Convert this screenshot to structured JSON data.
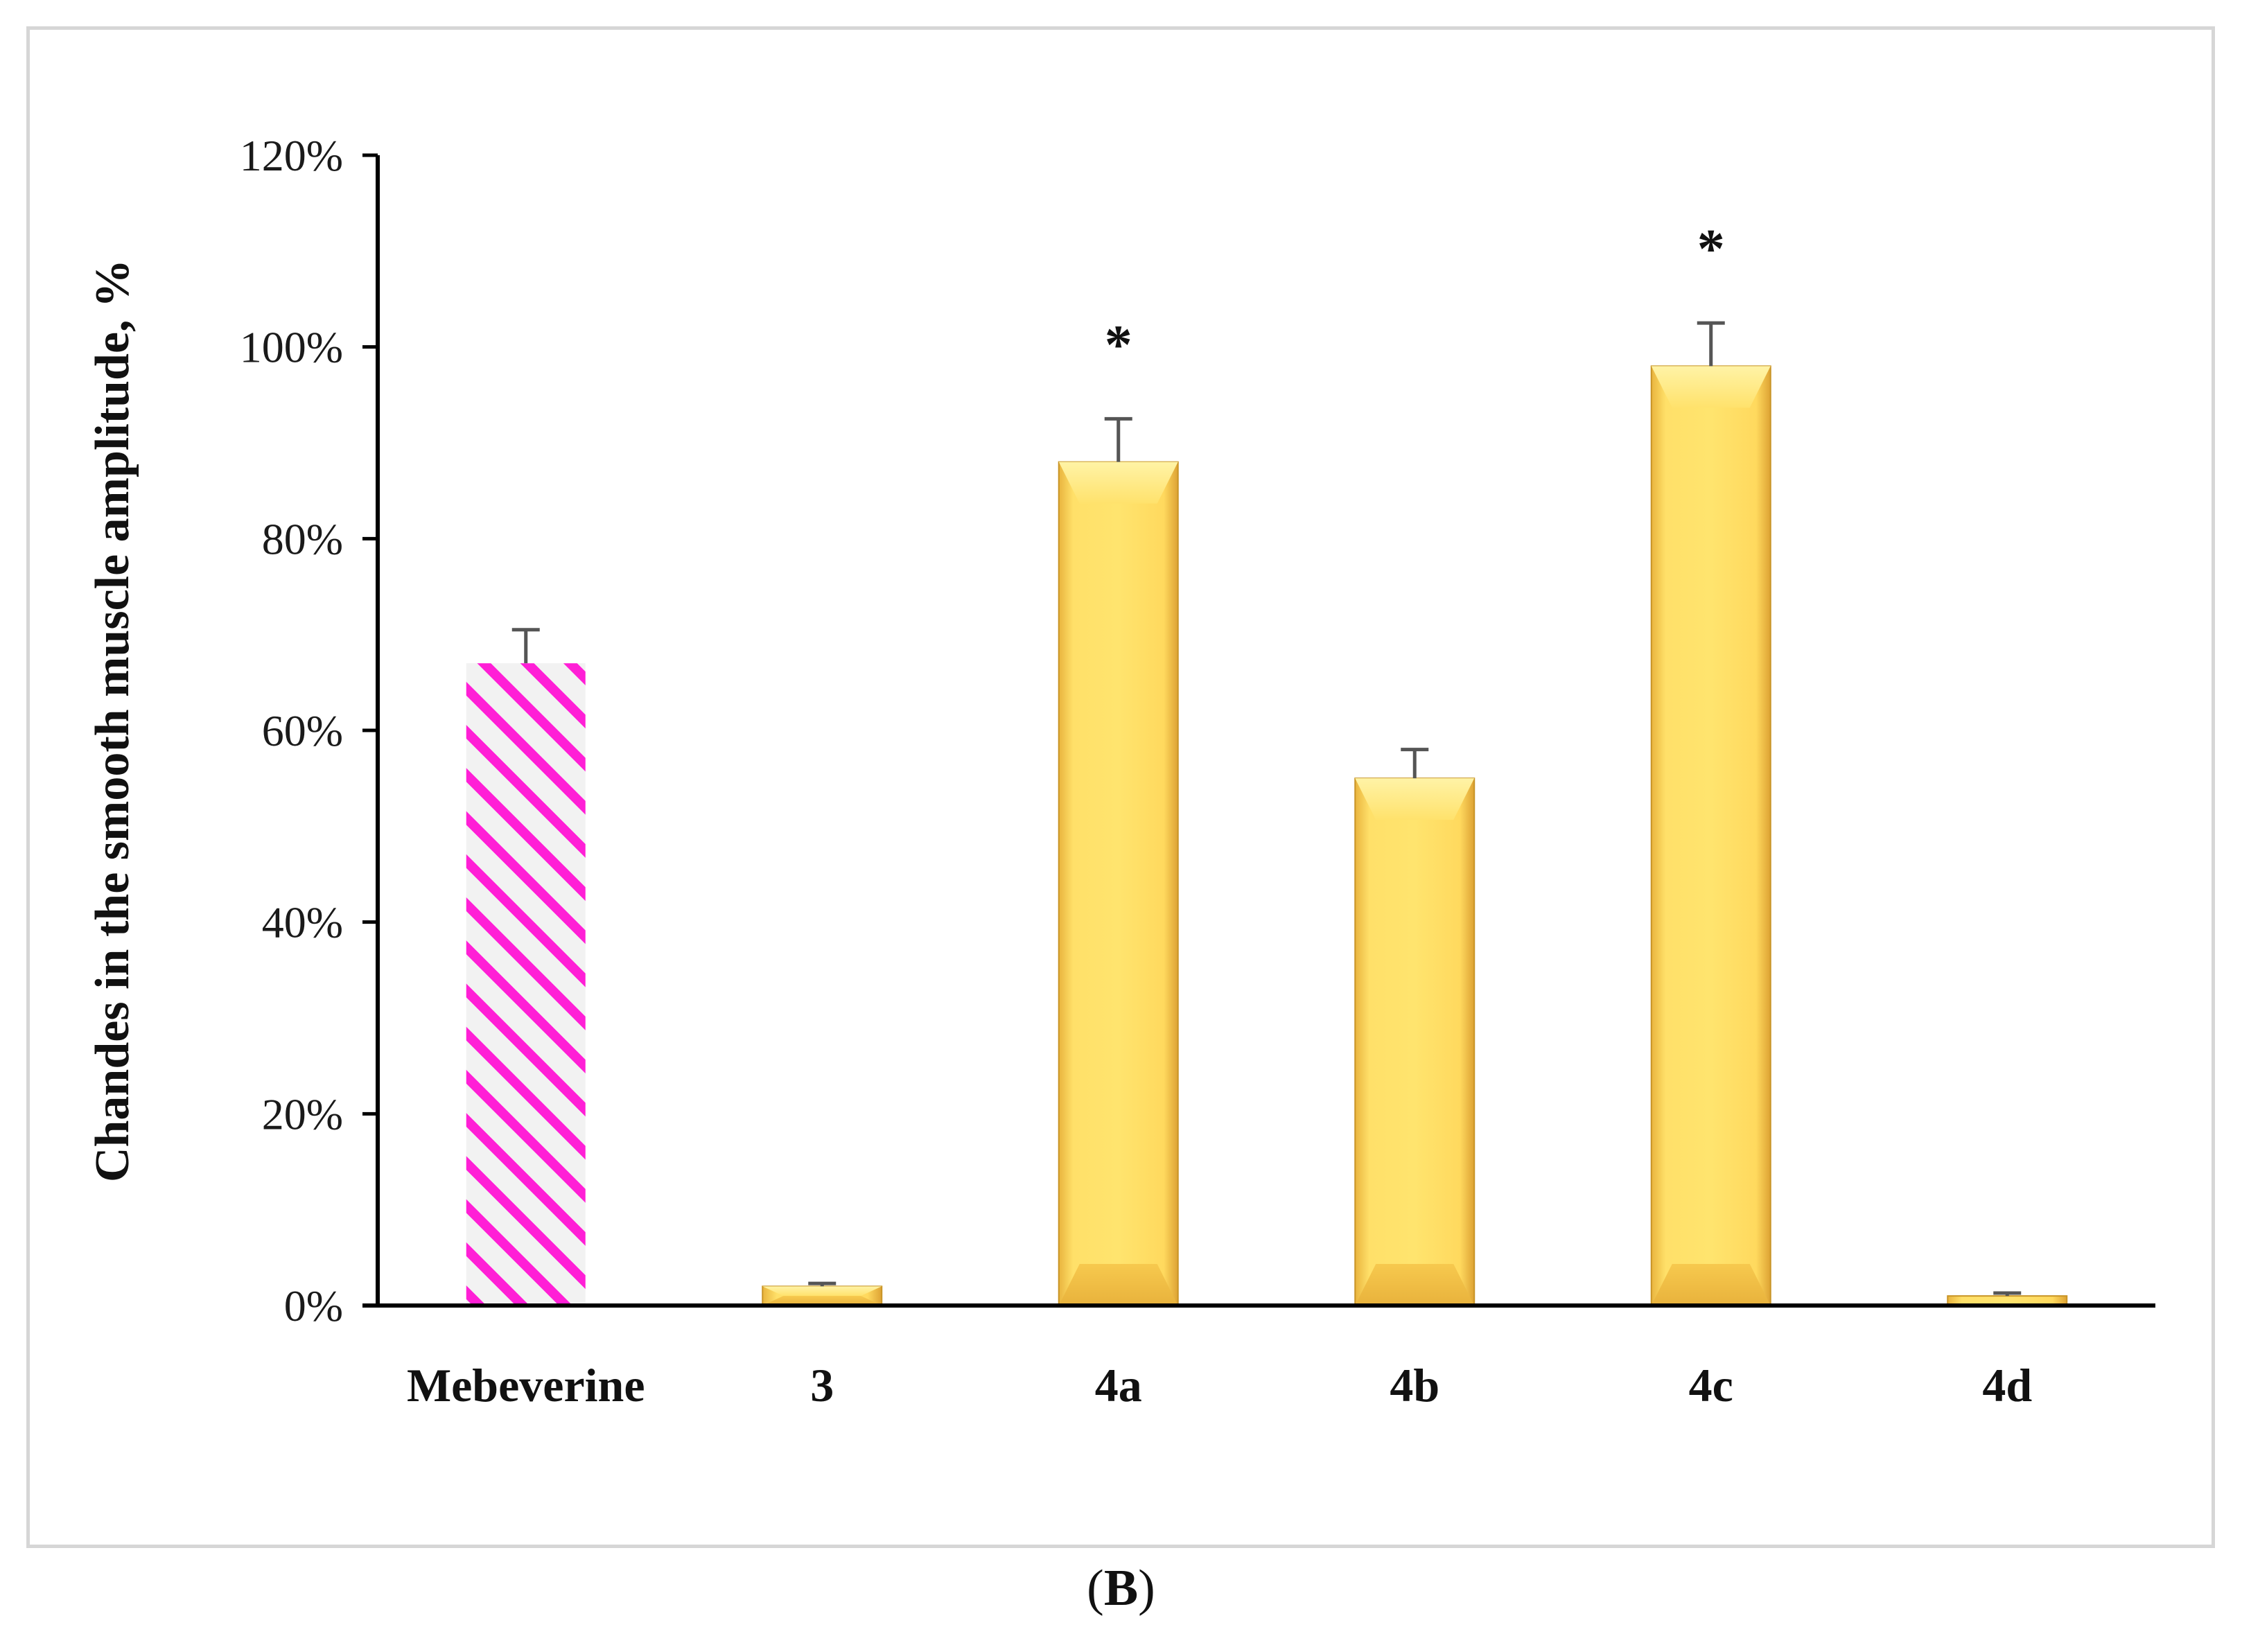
{
  "chart_data": {
    "type": "bar",
    "title": "",
    "xlabel": "",
    "ylabel": "Chandes in the smooth muscle amplitude, %",
    "ylim": [
      0,
      120
    ],
    "y_ticks": [
      0,
      20,
      40,
      60,
      80,
      100,
      120
    ],
    "y_tick_labels": [
      "0%",
      "20%",
      "40%",
      "60%",
      "80%",
      "100%",
      "120%"
    ],
    "categories": [
      "Mebeverine",
      "3",
      "4a",
      "4b",
      "4c",
      "4d"
    ],
    "values": [
      67,
      2,
      88,
      55,
      98,
      1
    ],
    "errors": [
      3.5,
      0.3,
      4.5,
      3,
      4.5,
      0.3
    ],
    "significance": [
      "",
      "",
      "*",
      "",
      "*",
      ""
    ],
    "bar_styles": [
      "hatched",
      "solid",
      "solid",
      "solid",
      "solid",
      "solid"
    ],
    "grid": false,
    "legend": "none"
  },
  "panel_label": {
    "open": "(",
    "letter": "B",
    "close": ")"
  },
  "colors": {
    "hatch_stripe": "#ff1fd6",
    "hatch_background": "#f2f2f2",
    "bar_fill": "#ffde66",
    "bar_edge": "#d6a32e",
    "axis": "#000000"
  }
}
